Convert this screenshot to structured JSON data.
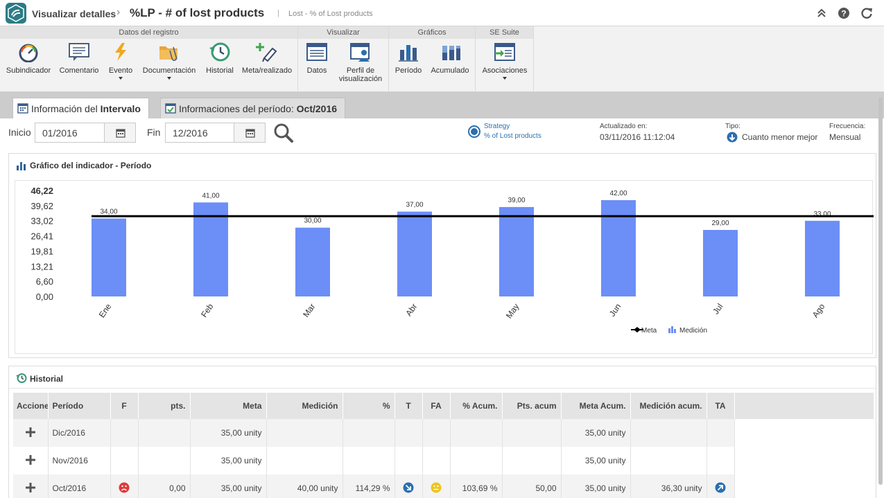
{
  "header": {
    "app_title": "Visualizar detalles",
    "page_title": "%LP - # of lost products",
    "separator": "|",
    "subtitle": "Lost - % of Lost products"
  },
  "ribbon": {
    "groups": [
      {
        "title": "Datos del registro",
        "buttons": [
          {
            "label": "Subindicador",
            "icon": "gauge-icon"
          },
          {
            "label": "Comentario",
            "icon": "comment-icon"
          },
          {
            "label": "Evento",
            "icon": "lightning-icon"
          },
          {
            "label": "Documentación",
            "icon": "folder-icon"
          },
          {
            "label": "Historial",
            "icon": "history-icon"
          },
          {
            "label": "Meta/realizado",
            "icon": "pen-plus-icon"
          }
        ]
      },
      {
        "title": "Visualizar",
        "buttons": [
          {
            "label": "Datos",
            "icon": "data-table-icon"
          },
          {
            "label": "Perfil de visualización",
            "line1": "Perfil de",
            "line2": "visualización",
            "icon": "profile-icon"
          }
        ]
      },
      {
        "title": "Gráficos",
        "buttons": [
          {
            "label": "Período",
            "icon": "bar-chart-icon"
          },
          {
            "label": "Acumulado",
            "icon": "stacked-chart-icon"
          }
        ]
      },
      {
        "title": "SE Suite",
        "buttons": [
          {
            "label": "Asociaciones",
            "icon": "association-icon"
          }
        ]
      }
    ]
  },
  "tabs": {
    "tab1_prefix": "Información del ",
    "tab1_bold": "Intervalo",
    "tab2_prefix": "Informaciones del período: ",
    "tab2_bold": "Oct/2016"
  },
  "filters": {
    "start_label": "Inicio",
    "start_value": "01/2016",
    "end_label": "Fin",
    "end_value": "12/2016"
  },
  "info": {
    "strategy_label": "Strategy",
    "strategy_value": "% of Lost products",
    "updated_label": "Actualizado en:",
    "updated_value": "03/11/2016 11:12:04",
    "type_label": "Tipo:",
    "type_value": "Cuanto menor mejor",
    "freq_label": "Frecuencia:",
    "freq_value": "Mensual"
  },
  "chart_panel": {
    "title": "Gráfico del indicador - Período"
  },
  "chart_data": {
    "type": "bar",
    "categories": [
      "Ene",
      "Feb",
      "Mar",
      "Abr",
      "May",
      "Jun",
      "Jul",
      "Ago"
    ],
    "series": [
      {
        "name": "Medición",
        "values": [
          34.0,
          41.0,
          30.0,
          37.0,
          39.0,
          42.0,
          29.0,
          33.0
        ]
      },
      {
        "name": "Meta",
        "values": [
          35.0,
          35.0,
          35.0,
          35.0,
          35.0,
          35.0,
          35.0,
          35.0
        ]
      }
    ],
    "value_labels": [
      "34,00",
      "41,00",
      "30,00",
      "37,00",
      "39,00",
      "42,00",
      "29,00",
      "33,00"
    ],
    "yticks": [
      "46,22",
      "39,62",
      "33,02",
      "26,41",
      "19,81",
      "13,21",
      "6,60",
      "0,00"
    ],
    "ylim": [
      0,
      46.22
    ],
    "bar_color": "#6c8ef7",
    "meta_color": "#000000",
    "legend": [
      "Meta",
      "Medición"
    ],
    "legend_position": "bottom-right"
  },
  "history": {
    "title": "Historial",
    "columns": [
      "Acciones",
      "Período",
      "F",
      "pts.",
      "Meta",
      "Medición",
      "%",
      "T",
      "FA",
      "% Acum.",
      "Pts. acum",
      "Meta Acum.",
      "Medición acum.",
      "TA"
    ],
    "rows": [
      {
        "period": "Dic/2016",
        "f": "",
        "pts": "",
        "meta": "35,00 unity",
        "medicion": "",
        "pct": "",
        "t": "",
        "fa": "",
        "pct_acum": "",
        "pts_acum": "",
        "meta_acum": "35,00 unity",
        "med_acum": "",
        "ta": ""
      },
      {
        "period": "Nov/2016",
        "f": "",
        "pts": "",
        "meta": "35,00 unity",
        "medicion": "",
        "pct": "",
        "t": "",
        "fa": "",
        "pct_acum": "",
        "pts_acum": "",
        "meta_acum": "35,00 unity",
        "med_acum": "",
        "ta": ""
      },
      {
        "period": "Oct/2016",
        "f": "sad-face-icon",
        "pts": "0,00",
        "meta": "35,00 unity",
        "medicion": "40,00 unity",
        "pct": "114,29 %",
        "t": "trend-down-icon",
        "fa": "neutral-face-icon",
        "pct_acum": "103,69 %",
        "pts_acum": "50,00",
        "meta_acum": "35,00 unity",
        "med_acum": "36,30 unity",
        "ta": "trend-up-icon"
      }
    ]
  },
  "colors": {
    "accent": "#2b7c86",
    "link": "#2a6fb0",
    "bar": "#6c8ef7"
  }
}
